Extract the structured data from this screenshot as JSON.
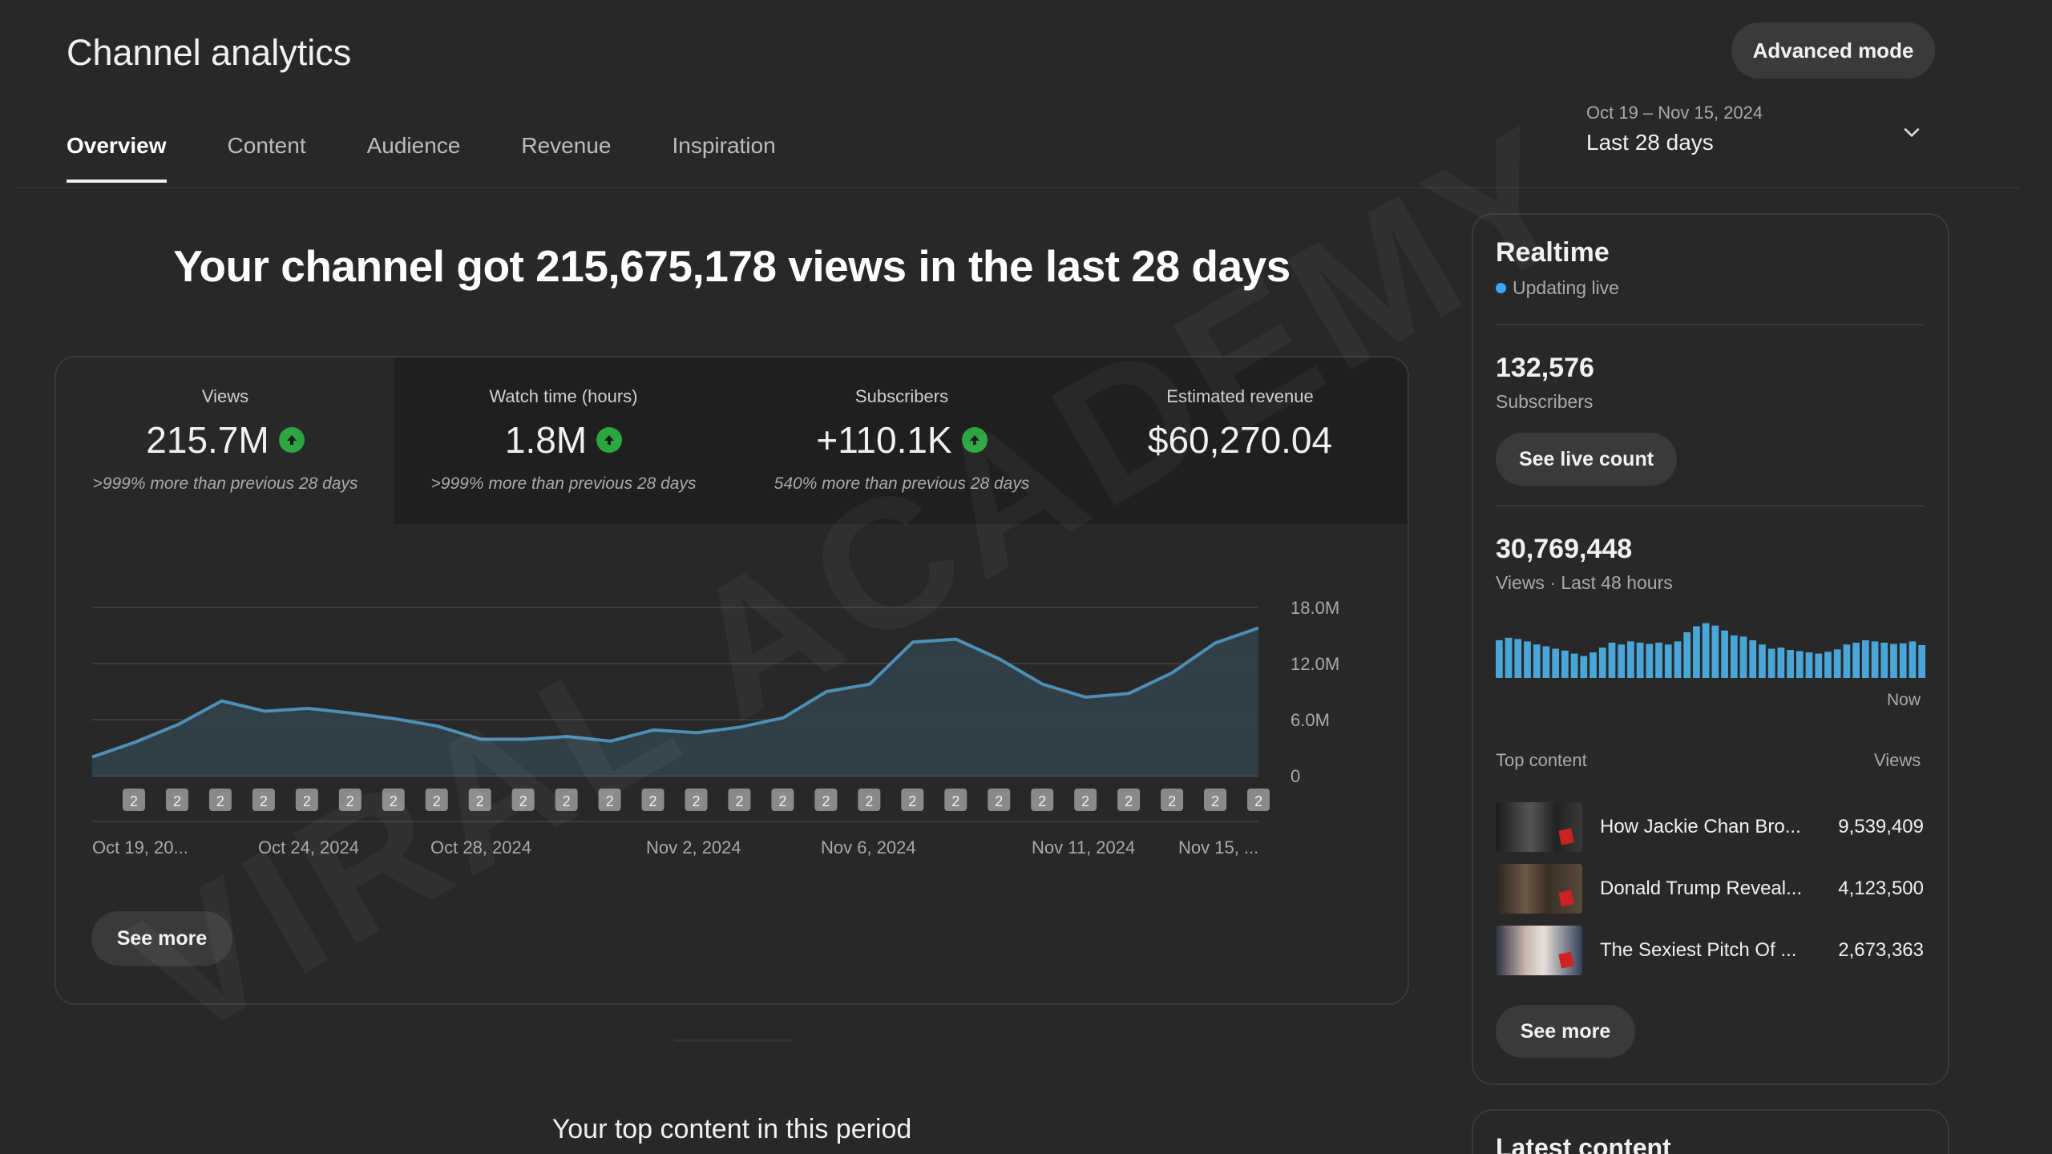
{
  "header": {
    "title": "Channel analytics",
    "advanced_mode": "Advanced mode",
    "tabs": [
      {
        "label": "Overview",
        "active": true
      },
      {
        "label": "Content",
        "active": false
      },
      {
        "label": "Audience",
        "active": false
      },
      {
        "label": "Revenue",
        "active": false
      },
      {
        "label": "Inspiration",
        "active": false
      }
    ],
    "date_range": {
      "dates": "Oct 19 – Nov 15, 2024",
      "label": "Last 28 days"
    }
  },
  "headline": "Your channel got 215,675,178 views in the last 28 days",
  "metrics": [
    {
      "label": "Views",
      "value": "215.7M",
      "trend": "up",
      "note": ">999% more than previous 28 days"
    },
    {
      "label": "Watch time (hours)",
      "value": "1.8M",
      "trend": "up",
      "note": ">999% more than previous 28 days"
    },
    {
      "label": "Subscribers",
      "value": "+110.1K",
      "trend": "up",
      "note": "540% more than previous 28 days"
    },
    {
      "label": "Estimated revenue",
      "value": "$60,270.04",
      "trend": "",
      "note": ""
    }
  ],
  "chart_data": {
    "type": "area",
    "title": "",
    "xlabel": "",
    "ylabel": "",
    "ylim": [
      0,
      18000000
    ],
    "y_ticks": [
      "18.0M",
      "12.0M",
      "6.0M",
      "0"
    ],
    "x_tick_labels": [
      "Oct 19, 20...",
      "Oct 24, 2024",
      "Oct 28, 2024",
      "Nov 2, 2024",
      "Nov 6, 2024",
      "Nov 11, 2024",
      "Nov 15, ..."
    ],
    "x": [
      "Oct 19",
      "Oct 20",
      "Oct 21",
      "Oct 22",
      "Oct 23",
      "Oct 24",
      "Oct 25",
      "Oct 26",
      "Oct 27",
      "Oct 28",
      "Oct 29",
      "Oct 30",
      "Oct 31",
      "Nov 1",
      "Nov 2",
      "Nov 3",
      "Nov 4",
      "Nov 5",
      "Nov 6",
      "Nov 7",
      "Nov 8",
      "Nov 9",
      "Nov 10",
      "Nov 11",
      "Nov 12",
      "Nov 13",
      "Nov 14",
      "Nov 15"
    ],
    "values": [
      2000000,
      3600000,
      5500000,
      8000000,
      6900000,
      7200000,
      6700000,
      6100000,
      5300000,
      3900000,
      3900000,
      4200000,
      3700000,
      4900000,
      4600000,
      5200000,
      6200000,
      9000000,
      9800000,
      14300000,
      14600000,
      12500000,
      9800000,
      8400000,
      8800000,
      11000000,
      14200000,
      15800000
    ],
    "marker_label": "2",
    "grid": true,
    "color": "#4e8fb5"
  },
  "main_see_more": "See more",
  "top_content_title": "Your top content in this period",
  "realtime": {
    "title": "Realtime",
    "status": "Updating live",
    "subscribers_value": "132,576",
    "subscribers_label": "Subscribers",
    "live_count_button": "See live count",
    "views_value": "30,769,448",
    "views_label": "Views · Last 48 hours",
    "now_label": "Now",
    "bar_color": "#4aa6d8",
    "bars": [
      0.62,
      0.66,
      0.64,
      0.6,
      0.55,
      0.52,
      0.48,
      0.45,
      0.4,
      0.36,
      0.42,
      0.5,
      0.58,
      0.55,
      0.6,
      0.58,
      0.56,
      0.58,
      0.55,
      0.6,
      0.75,
      0.85,
      0.9,
      0.86,
      0.78,
      0.7,
      0.68,
      0.62,
      0.55,
      0.48,
      0.5,
      0.46,
      0.44,
      0.42,
      0.4,
      0.43,
      0.47,
      0.55,
      0.58,
      0.62,
      0.6,
      0.58,
      0.56,
      0.57,
      0.6,
      0.54
    ],
    "top_content_label": "Top content",
    "views_col_label": "Views",
    "top_content": [
      {
        "title": "How Jackie Chan Bro...",
        "views": "9,539,409"
      },
      {
        "title": "Donald Trump Reveal...",
        "views": "4,123,500"
      },
      {
        "title": "The Sexiest Pitch Of ...",
        "views": "2,673,363"
      }
    ],
    "see_more": "See more"
  },
  "latest_content_title": "Latest content",
  "watermark": "VIRAL ACADEMY"
}
